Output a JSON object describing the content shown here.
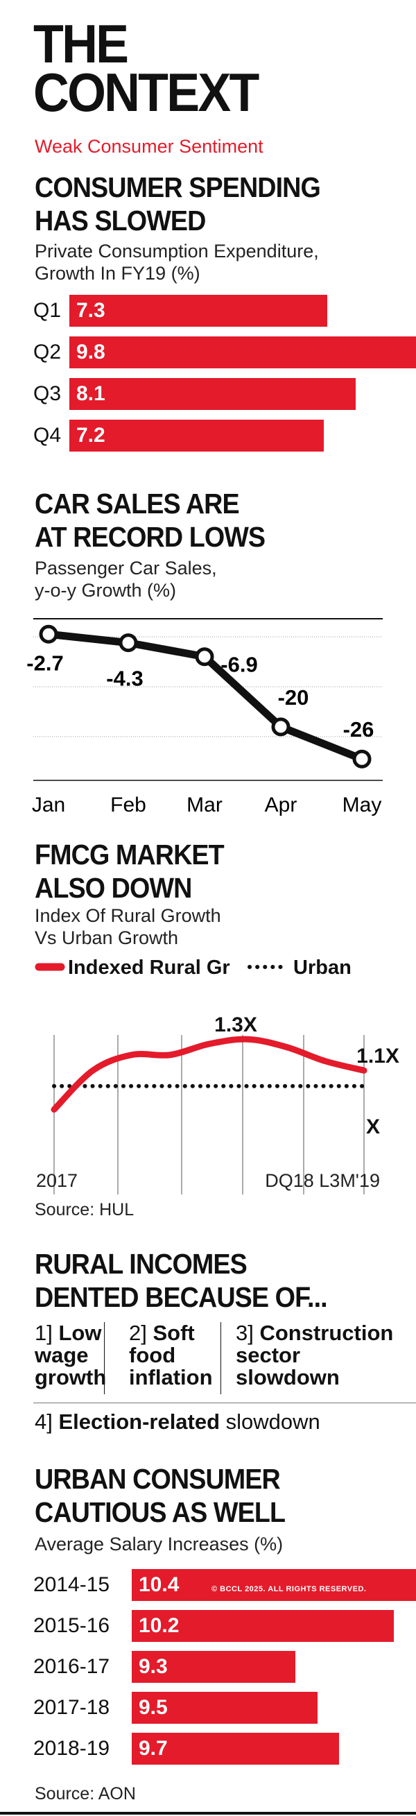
{
  "header": {
    "title_line1": "THE",
    "title_line2": "CONTEXT",
    "subtitle": "Weak Consumer Sentiment"
  },
  "colors": {
    "accent": "#e31b2b",
    "text": "#111111"
  },
  "section1": {
    "title_line1": "CONSUMER SPENDING",
    "title_line2": "HAS SLOWED",
    "subtitle_line1": "Private Consumption Expenditure,",
    "subtitle_line2": "Growth In FY19 (%)"
  },
  "section2": {
    "title_line1": "CAR SALES ARE",
    "title_line2": "AT RECORD LOWS",
    "subtitle_line1": "Passenger Car Sales,",
    "subtitle_line2": "y-o-y Growth (%)"
  },
  "section3": {
    "title_line1": "FMCG MARKET",
    "title_line2": "ALSO DOWN",
    "subtitle_line1": "Index Of Rural Growth",
    "subtitle_line2": "Vs Urban Growth",
    "source": "Source: HUL"
  },
  "section4": {
    "title_line1": "RURAL INCOMES",
    "title_line2": "DENTED BECAUSE OF...",
    "reasons": [
      {
        "num": "1]",
        "bold_line1": "Low",
        "rest_line2": "wage",
        "rest_line3": "growth"
      },
      {
        "num": "2]",
        "bold_line1": "Soft",
        "rest_line2": "food",
        "rest_line3": "inflation"
      },
      {
        "num": "3]",
        "bold_line1": "Construction",
        "rest_line2": "sector",
        "rest_line3": "slowdown"
      }
    ],
    "reason4_num": "4]",
    "reason4_bold": "Election-related",
    "reason4_rest": "slowdown"
  },
  "section5": {
    "title_line1": "URBAN CONSUMER",
    "title_line2": "CAUTIOUS AS WELL",
    "subtitle": "Average Salary Increases (%)",
    "source": "Source: AON",
    "watermark": "© BCCL 2025. ALL RIGHTS RESERVED."
  },
  "chart_data": [
    {
      "type": "bar",
      "orientation": "horizontal",
      "categories": [
        "Q1",
        "Q2",
        "Q3",
        "Q4"
      ],
      "values": [
        7.3,
        9.8,
        8.1,
        7.2
      ],
      "value_labels": [
        "7.3",
        "9.8",
        "8.1",
        "7.2"
      ],
      "xlim": [
        0,
        9.8
      ]
    },
    {
      "type": "line",
      "categories": [
        "Jan",
        "Feb",
        "Mar",
        "Apr",
        "May"
      ],
      "values": [
        -2.7,
        -4.3,
        -6.9,
        -20,
        -26
      ],
      "value_labels": [
        "-2.7",
        "-4.3",
        "-6.9",
        "-20",
        "-26"
      ],
      "ylim": [
        -27.4,
        -1.5
      ],
      "grid": true
    },
    {
      "type": "line",
      "x_labels": [
        "2017",
        "DQ18 L3M'19"
      ],
      "series": [
        {
          "name": "Indexed Rural Gr",
          "color": "#e31b2b",
          "style": "solid",
          "values": [
            0.85,
            1.1,
            1.2,
            1.2,
            1.27,
            1.3,
            1.25,
            1.16,
            1.1
          ]
        },
        {
          "name": "Urban",
          "color": "#111111",
          "style": "dotted",
          "values": [
            1.0,
            1.0,
            1.0,
            1.0,
            1.0,
            1.0,
            1.0,
            1.0,
            1.0
          ]
        }
      ],
      "annotations": [
        "1.3X",
        "1.1X",
        "X"
      ],
      "ylim": [
        0.55,
        1.55
      ],
      "grid": true
    },
    {
      "type": "bar",
      "orientation": "horizontal",
      "categories": [
        "2014-15",
        "2015-16",
        "2016-17",
        "2017-18",
        "2018-19"
      ],
      "values": [
        10.4,
        10.2,
        9.3,
        9.5,
        9.7
      ],
      "value_labels": [
        "10.4",
        "10.2",
        "9.3",
        "9.5",
        "9.7"
      ],
      "xlim": [
        8.5,
        10.4
      ]
    }
  ]
}
